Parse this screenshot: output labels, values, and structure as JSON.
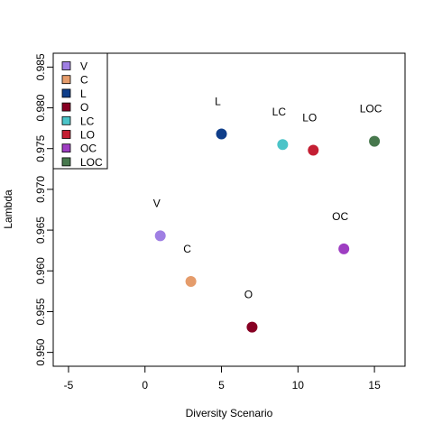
{
  "chart_data": {
    "type": "scatter",
    "title": "",
    "xlabel": "Diversity Scenario",
    "ylabel": "Lambda",
    "xlim": [
      -6,
      17
    ],
    "ylim": [
      0.9483,
      0.9867
    ],
    "x_ticks": [
      -5,
      0,
      5,
      10,
      15
    ],
    "y_ticks": [
      0.95,
      0.955,
      0.96,
      0.965,
      0.97,
      0.975,
      0.98,
      0.985
    ],
    "y_tick_labels": [
      "0.950",
      "0.955",
      "0.960",
      "0.965",
      "0.970",
      "0.975",
      "0.980",
      "0.985"
    ],
    "grid": false,
    "legend_position": "top-left",
    "points": [
      {
        "label": "V",
        "x": 1,
        "y": 0.9643,
        "color": "#9f7fe3"
      },
      {
        "label": "C",
        "x": 3,
        "y": 0.9587,
        "color": "#e59c6b"
      },
      {
        "label": "L",
        "x": 5,
        "y": 0.9768,
        "color": "#0f3e8a"
      },
      {
        "label": "O",
        "x": 7,
        "y": 0.9531,
        "color": "#870023"
      },
      {
        "label": "LC",
        "x": 9,
        "y": 0.9755,
        "color": "#4bc4c8"
      },
      {
        "label": "LO",
        "x": 11,
        "y": 0.9748,
        "color": "#c41f33"
      },
      {
        "label": "OC",
        "x": 13,
        "y": 0.9627,
        "color": "#9e3ec2"
      },
      {
        "label": "LOC",
        "x": 15,
        "y": 0.9759,
        "color": "#47784d"
      }
    ],
    "legend": [
      {
        "label": "V",
        "color": "#9f7fe3"
      },
      {
        "label": "C",
        "color": "#e59c6b"
      },
      {
        "label": "L",
        "color": "#0f3e8a"
      },
      {
        "label": "O",
        "color": "#870023"
      },
      {
        "label": "LC",
        "color": "#4bc4c8"
      },
      {
        "label": "LO",
        "color": "#c41f33"
      },
      {
        "label": "OC",
        "color": "#9e3ec2"
      },
      {
        "label": "LOC",
        "color": "#47784d"
      }
    ]
  }
}
